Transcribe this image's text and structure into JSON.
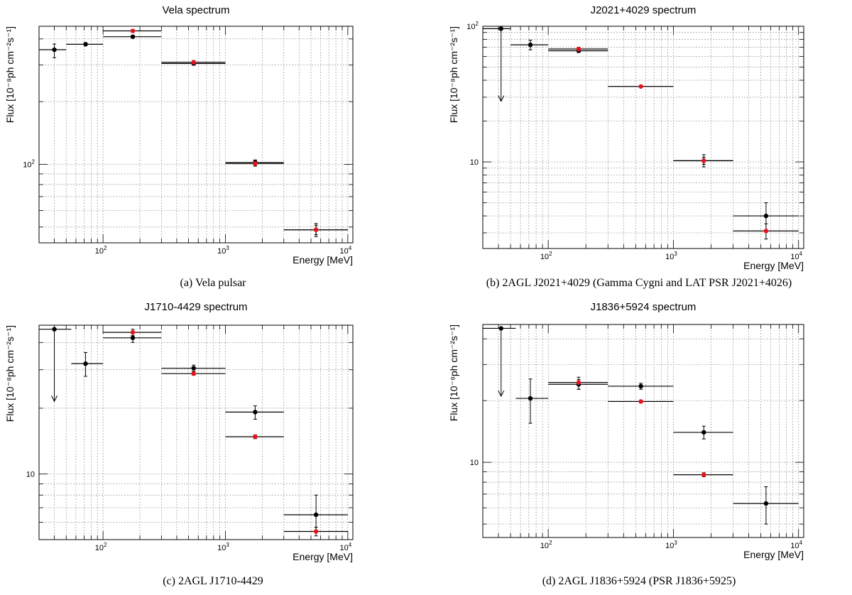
{
  "figure": {
    "captions": [
      "(a) Vela pulsar",
      "(b) 2AGL J2021+4029 (Gamma Cygni and LAT PSR J2021+4026)",
      "(c) 2AGL J1710-4429",
      "(d) 2AGL J1836+5924 (PSR J1836+5925)"
    ]
  },
  "colors": {
    "series_black": "#000000",
    "series_red": "#e8141c",
    "grid": "#9a9a9a"
  },
  "chart_data": [
    {
      "type": "scatter",
      "title": "Vela spectrum",
      "xlabel": "Energy [MeV]",
      "ylabel": "Flux [10⁻⁸ph cm⁻²s⁻¹]",
      "xscale": "log",
      "yscale": "log",
      "xlim": [
        30,
        11000
      ],
      "ylim": [
        42,
        460
      ],
      "x_ticks": [
        {
          "v": 100,
          "label": "10",
          "exp": "2"
        },
        {
          "v": 1000,
          "label": "10",
          "exp": "3"
        },
        {
          "v": 10000,
          "label": "10",
          "exp": "4"
        }
      ],
      "y_ticks": [
        {
          "v": 100,
          "label": "10",
          "exp": "2"
        }
      ],
      "grid": true,
      "series": [
        {
          "color": "black",
          "points": [
            {
              "x": 40,
              "xlo": 30,
              "xhi": 50,
              "y": 355,
              "ylo": 325,
              "yhi": 378,
              "ul": false
            },
            {
              "x": 72,
              "xlo": 50,
              "xhi": 100,
              "y": 377,
              "ylo": 371,
              "yhi": 384,
              "ul": false
            },
            {
              "x": 175,
              "xlo": 100,
              "xhi": 300,
              "y": 410,
              "ylo": 403,
              "yhi": 417,
              "ul": false
            },
            {
              "x": 550,
              "xlo": 300,
              "xhi": 1000,
              "y": 305,
              "ylo": 299,
              "yhi": 311,
              "ul": false
            },
            {
              "x": 1750,
              "xlo": 1000,
              "xhi": 3000,
              "y": 102,
              "ylo": 99,
              "yhi": 105,
              "ul": false
            },
            {
              "x": 5500,
              "xlo": 3000,
              "xhi": 10000,
              "y": 48.5,
              "ylo": 45,
              "yhi": 52,
              "ul": false
            }
          ]
        },
        {
          "color": "red",
          "points": [
            {
              "x": 175,
              "xlo": 100,
              "xhi": 300,
              "y": 437,
              "ylo": 430,
              "yhi": 444,
              "ul": false
            },
            {
              "x": 550,
              "xlo": 300,
              "xhi": 1000,
              "y": 309,
              "ylo": 303,
              "yhi": 315,
              "ul": false
            },
            {
              "x": 1750,
              "xlo": 1000,
              "xhi": 3000,
              "y": 101,
              "ylo": 98,
              "yhi": 104,
              "ul": false
            },
            {
              "x": 5500,
              "xlo": 3000,
              "xhi": 10000,
              "y": 48.5,
              "ylo": 46,
              "yhi": 51,
              "ul": false
            }
          ]
        }
      ]
    },
    {
      "type": "scatter",
      "title": "J2021+4029 spectrum",
      "xlabel": "Energy [MeV]",
      "ylabel": "Flux [10⁻⁸ph cm⁻²s⁻¹]",
      "xscale": "log",
      "yscale": "log",
      "xlim": [
        30,
        11000
      ],
      "ylim": [
        2.3,
        100
      ],
      "x_ticks": [
        {
          "v": 100,
          "label": "10",
          "exp": "2"
        },
        {
          "v": 1000,
          "label": "10",
          "exp": "3"
        },
        {
          "v": 10000,
          "label": "10",
          "exp": "4"
        }
      ],
      "y_ticks": [
        {
          "v": 10,
          "label": "10",
          "exp": ""
        },
        {
          "v": 100,
          "label": "10",
          "exp": "2"
        }
      ],
      "grid": true,
      "series": [
        {
          "color": "black",
          "points": [
            {
              "x": 42,
              "xlo": 30,
              "xhi": 50,
              "y": 96,
              "ylo": 28,
              "yhi": 96,
              "ul": true
            },
            {
              "x": 72,
              "xlo": 50,
              "xhi": 100,
              "y": 73,
              "ylo": 67,
              "yhi": 79,
              "ul": false
            },
            {
              "x": 175,
              "xlo": 100,
              "xhi": 300,
              "y": 66,
              "ylo": 64,
              "yhi": 68,
              "ul": false
            },
            {
              "x": 1750,
              "xlo": 1000,
              "xhi": 3000,
              "y": 10.2,
              "ylo": 9.2,
              "yhi": 11.3,
              "ul": false
            },
            {
              "x": 5500,
              "xlo": 3000,
              "xhi": 10000,
              "y": 4.0,
              "ylo": 3.1,
              "yhi": 5.0,
              "ul": false
            }
          ]
        },
        {
          "color": "red",
          "points": [
            {
              "x": 175,
              "xlo": 100,
              "xhi": 300,
              "y": 68,
              "ylo": 66,
              "yhi": 70,
              "ul": false
            },
            {
              "x": 550,
              "xlo": 300,
              "xhi": 1000,
              "y": 36,
              "ylo": 35.5,
              "yhi": 36.5,
              "ul": false
            },
            {
              "x": 1750,
              "xlo": 1000,
              "xhi": 3000,
              "y": 10.2,
              "ylo": 9.6,
              "yhi": 10.8,
              "ul": false
            },
            {
              "x": 5500,
              "xlo": 3000,
              "xhi": 10000,
              "y": 3.1,
              "ylo": 2.7,
              "yhi": 3.5,
              "ul": false
            }
          ]
        }
      ]
    },
    {
      "type": "scatter",
      "title": "J1710-4429 spectrum",
      "xlabel": "Energy [MeV]",
      "ylabel": "Flux [10⁻⁸ph cm⁻²s⁻¹]",
      "xscale": "log",
      "yscale": "log",
      "xlim": [
        30,
        11000
      ],
      "ylim": [
        5.0,
        48
      ],
      "x_ticks": [
        {
          "v": 100,
          "label": "10",
          "exp": "2"
        },
        {
          "v": 1000,
          "label": "10",
          "exp": "3"
        },
        {
          "v": 10000,
          "label": "10",
          "exp": "4"
        }
      ],
      "y_ticks": [
        {
          "v": 10,
          "label": "10",
          "exp": ""
        }
      ],
      "grid": true,
      "series": [
        {
          "color": "black",
          "points": [
            {
              "x": 40,
              "xlo": 30,
              "xhi": 55,
              "y": 46,
              "ylo": 21.5,
              "yhi": 46,
              "ul": true
            },
            {
              "x": 72,
              "xlo": 55,
              "xhi": 100,
              "y": 32,
              "ylo": 28,
              "yhi": 36,
              "ul": false
            },
            {
              "x": 175,
              "xlo": 100,
              "xhi": 300,
              "y": 42,
              "ylo": 40,
              "yhi": 44,
              "ul": false
            },
            {
              "x": 550,
              "xlo": 300,
              "xhi": 1000,
              "y": 30.5,
              "ylo": 29.5,
              "yhi": 31.5,
              "ul": false
            },
            {
              "x": 1750,
              "xlo": 1000,
              "xhi": 3000,
              "y": 19.2,
              "ylo": 17.8,
              "yhi": 20.5,
              "ul": false
            },
            {
              "x": 5500,
              "xlo": 3000,
              "xhi": 10000,
              "y": 6.5,
              "ylo": 5.5,
              "yhi": 8.0,
              "ul": false
            }
          ]
        },
        {
          "color": "red",
          "points": [
            {
              "x": 175,
              "xlo": 100,
              "xhi": 300,
              "y": 44.5,
              "ylo": 43,
              "yhi": 46,
              "ul": false
            },
            {
              "x": 550,
              "xlo": 300,
              "xhi": 1000,
              "y": 28.8,
              "ylo": 28.3,
              "yhi": 29.3,
              "ul": false
            },
            {
              "x": 1750,
              "xlo": 1000,
              "xhi": 3000,
              "y": 14.8,
              "ylo": 14.5,
              "yhi": 15.1,
              "ul": false
            },
            {
              "x": 5500,
              "xlo": 3000,
              "xhi": 10000,
              "y": 5.45,
              "ylo": 5.2,
              "yhi": 5.7,
              "ul": false
            }
          ]
        }
      ]
    },
    {
      "type": "scatter",
      "title": "J1836+5924 spectrum",
      "xlabel": "Energy [MeV]",
      "ylabel": "Flux [10⁻⁸ph cm⁻²s⁻¹]",
      "xscale": "log",
      "yscale": "log",
      "xlim": [
        30,
        11000
      ],
      "ylim": [
        4.3,
        47
      ],
      "x_ticks": [
        {
          "v": 100,
          "label": "10",
          "exp": "2"
        },
        {
          "v": 1000,
          "label": "10",
          "exp": "3"
        },
        {
          "v": 10000,
          "label": "10",
          "exp": "4"
        }
      ],
      "y_ticks": [
        {
          "v": 10,
          "label": "10",
          "exp": ""
        }
      ],
      "grid": true,
      "series": [
        {
          "color": "black",
          "points": [
            {
              "x": 42,
              "xlo": 30,
              "xhi": 55,
              "y": 45,
              "ylo": 21,
              "yhi": 45,
              "ul": true
            },
            {
              "x": 72,
              "xlo": 55,
              "xhi": 100,
              "y": 20.5,
              "ylo": 15.5,
              "yhi": 25.5,
              "ul": false
            },
            {
              "x": 175,
              "xlo": 100,
              "xhi": 300,
              "y": 24,
              "ylo": 22.7,
              "yhi": 25.3,
              "ul": false
            },
            {
              "x": 550,
              "xlo": 300,
              "xhi": 1000,
              "y": 23.5,
              "ylo": 22.7,
              "yhi": 24.3,
              "ul": false
            },
            {
              "x": 1750,
              "xlo": 1000,
              "xhi": 3000,
              "y": 14,
              "ylo": 13.0,
              "yhi": 15.0,
              "ul": false
            },
            {
              "x": 5500,
              "xlo": 3000,
              "xhi": 10000,
              "y": 6.3,
              "ylo": 5.0,
              "yhi": 7.6,
              "ul": false
            }
          ]
        },
        {
          "color": "red",
          "points": [
            {
              "x": 175,
              "xlo": 100,
              "xhi": 300,
              "y": 24.5,
              "ylo": 22.7,
              "yhi": 26,
              "ul": false
            },
            {
              "x": 550,
              "xlo": 300,
              "xhi": 1000,
              "y": 19.8,
              "ylo": 19.5,
              "yhi": 20.1,
              "ul": false
            },
            {
              "x": 1750,
              "xlo": 1000,
              "xhi": 3000,
              "y": 8.7,
              "ylo": 8.5,
              "yhi": 8.9,
              "ul": false
            }
          ]
        }
      ]
    }
  ]
}
